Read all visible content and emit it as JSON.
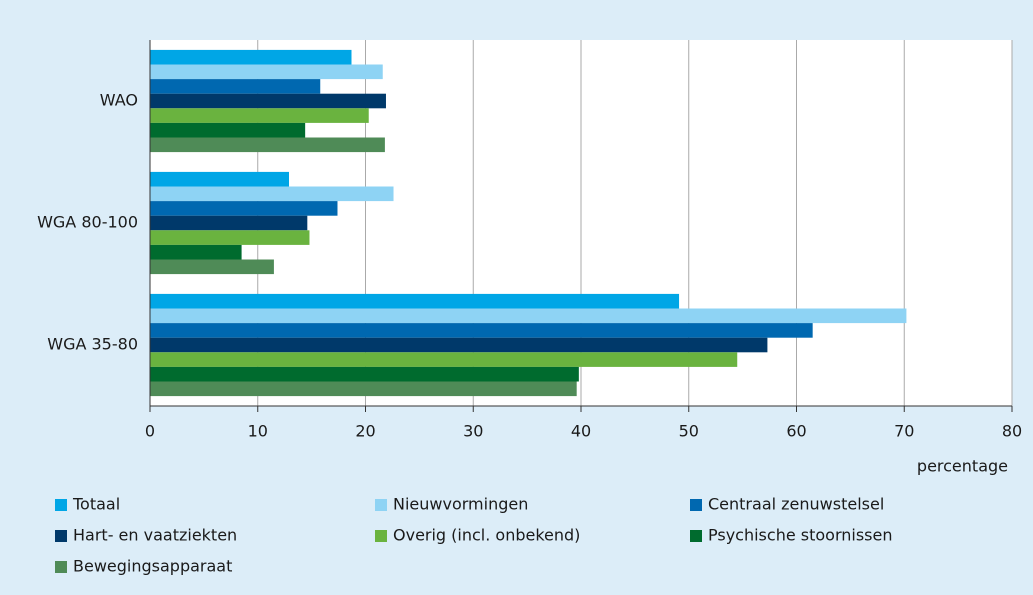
{
  "chart_data": {
    "type": "hbar",
    "categories": [
      "WAO",
      "WGA 80-100",
      "WGA 35-80"
    ],
    "series": [
      {
        "name": "Totaal",
        "color": "#00a6e6",
        "values": [
          18.7,
          12.9,
          49.1
        ]
      },
      {
        "name": "Nieuwvormingen",
        "color": "#8ed3f4",
        "values": [
          21.6,
          22.6,
          70.2
        ]
      },
      {
        "name": "Centraal zenuwstelsel",
        "color": "#0068b0",
        "values": [
          15.8,
          17.4,
          61.5
        ]
      },
      {
        "name": "Hart- en vaatziekten",
        "color": "#00396a",
        "values": [
          21.9,
          14.6,
          57.3
        ]
      },
      {
        "name": "Overig (incl. onbekend)",
        "color": "#6ab33f",
        "values": [
          20.3,
          14.8,
          54.5
        ]
      },
      {
        "name": "Psychische stoornissen",
        "color": "#006b2e",
        "values": [
          14.4,
          8.5,
          39.8
        ]
      },
      {
        "name": "Bewegingsapparaat",
        "color": "#4f8b57",
        "values": [
          21.8,
          11.5,
          39.6
        ]
      }
    ],
    "xlabel": "percentage",
    "xlim": [
      0,
      80
    ],
    "xticks": [
      0,
      10,
      20,
      30,
      40,
      50,
      60,
      70,
      80
    ],
    "grid": true
  }
}
